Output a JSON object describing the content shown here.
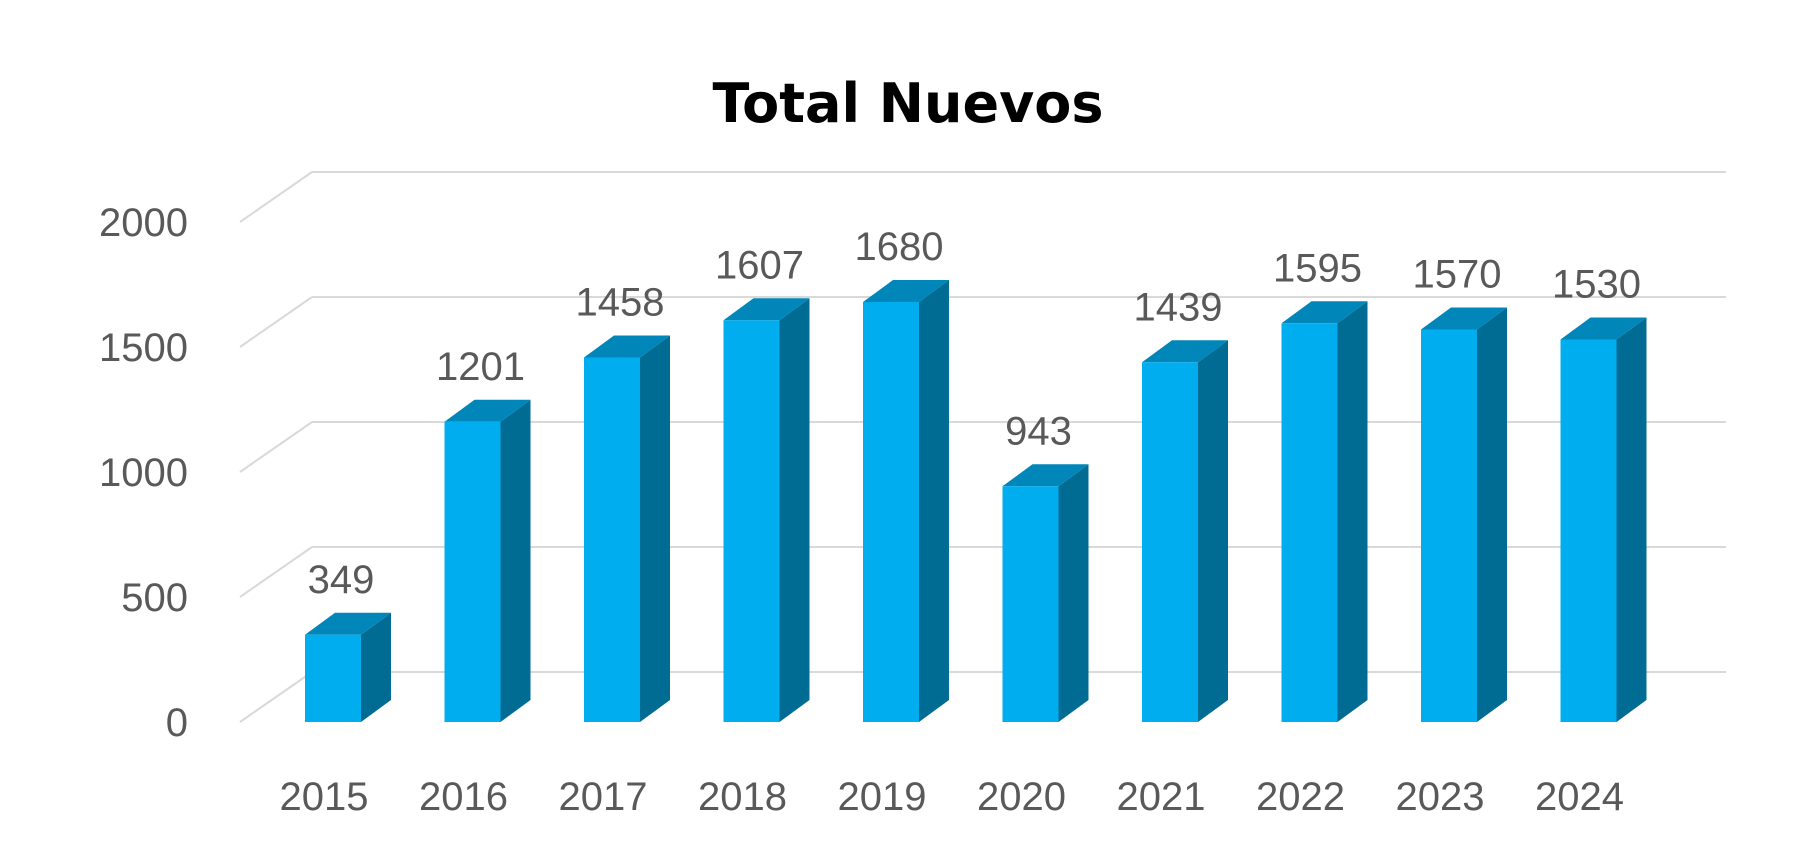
{
  "chart_data": {
    "type": "bar",
    "title": "Total Nuevos",
    "xlabel": "",
    "ylabel": "",
    "categories": [
      "2015",
      "2016",
      "2017",
      "2018",
      "2019",
      "2020",
      "2021",
      "2022",
      "2023",
      "2024"
    ],
    "values": [
      349,
      1201,
      1458,
      1607,
      1680,
      943,
      1439,
      1595,
      1570,
      1530
    ],
    "data_labels": [
      "349",
      "1201",
      "1458",
      "1607",
      "1680",
      "943",
      "1439",
      "1595",
      "1570",
      "1530"
    ],
    "ylim": [
      0,
      2000
    ],
    "yticks": [
      0,
      500,
      1000,
      1500,
      2000
    ],
    "ytick_labels": [
      "0",
      "500",
      "1000",
      "1500",
      "2000"
    ],
    "grid": true,
    "legend": "none",
    "style": "3d-column",
    "colors": {
      "bar_front": "#00AEEF",
      "bar_side": "#006C93",
      "bar_top": "#0086B8",
      "gridline": "#D9D9D9",
      "text": "#595959",
      "title": "#000000"
    }
  }
}
